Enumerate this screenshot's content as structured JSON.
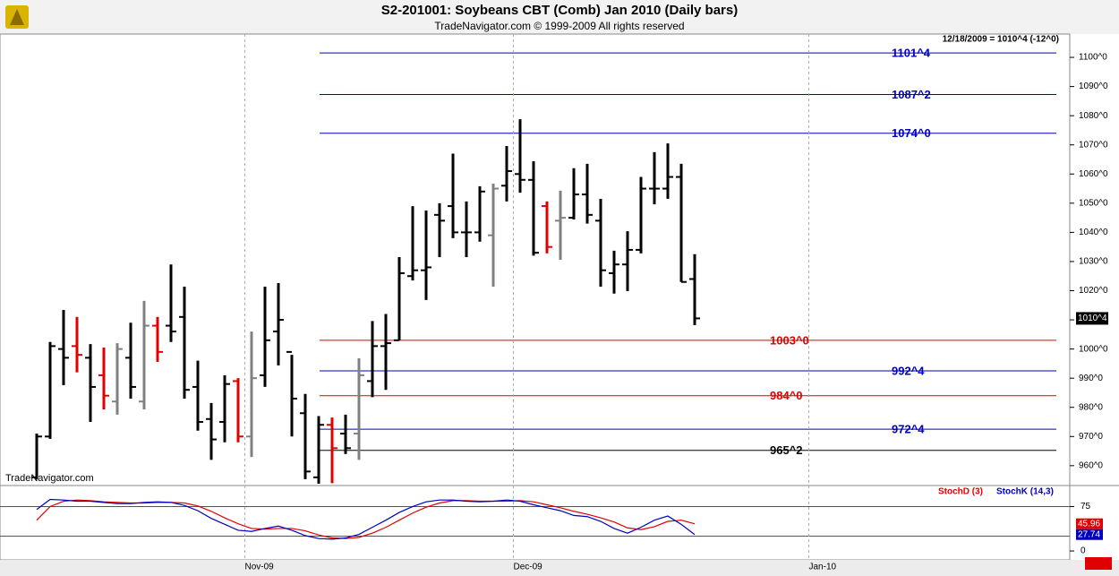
{
  "title": "S2-201001:  Soybeans CBT (Comb) Jan 2010  (Daily bars)",
  "subtitle": "TradeNavigator.com © 1999-2009 All rights reserved",
  "info": "12/18/2009 = 1010^4 (-12^0)",
  "watermark": "TradeNavigator.com",
  "chart_data": [
    {
      "type": "ohlc",
      "last_label": "1010^4",
      "ylim": [
        953.5,
        1108
      ],
      "yticks": [
        {
          "value": 960,
          "label": "960^0"
        },
        {
          "value": 970,
          "label": "970^0"
        },
        {
          "value": 980,
          "label": "980^0"
        },
        {
          "value": 990,
          "label": "990^0"
        },
        {
          "value": 1000,
          "label": "1000^0"
        },
        {
          "value": 1010,
          "label": "1010^0"
        },
        {
          "value": 1020,
          "label": "1020^0"
        },
        {
          "value": 1030,
          "label": "1030^0"
        },
        {
          "value": 1040,
          "label": "1040^0"
        },
        {
          "value": 1050,
          "label": "1050^0"
        },
        {
          "value": 1060,
          "label": "1060^0"
        },
        {
          "value": 1070,
          "label": "1070^0"
        },
        {
          "value": 1080,
          "label": "1080^0"
        },
        {
          "value": 1090,
          "label": "1090^0"
        },
        {
          "value": 1100,
          "label": "1100^0"
        }
      ],
      "open": [
        956,
        970,
        1000,
        1001,
        997,
        991,
        982,
        997,
        982,
        1008,
        1008,
        1011,
        987,
        976,
        975,
        989,
        970,
        991,
        1006,
        999,
        978,
        956,
        974,
        971,
        971,
        989,
        1001,
        1003,
        1025,
        1027,
        1046,
        1049,
        1040,
        1040,
        1039,
        1056,
        1060,
        1058,
        1049,
        1044,
        1045,
        1053,
        1044,
        1026,
        1029,
        1034,
        1055,
        1055,
        1059,
        1024,
        null,
        null,
        null,
        null,
        null,
        null,
        null,
        null,
        null
      ],
      "high": [
        971,
        1002.4,
        1013.4,
        1011,
        1001.7,
        1000.5,
        1002,
        1009,
        1016.5,
        1011,
        1029,
        1021.4,
        996,
        981.5,
        991,
        990,
        1006,
        1021.4,
        1022.6,
        998,
        984.6,
        977,
        976.5,
        977.5,
        996.8,
        1009.6,
        1012,
        1031.5,
        1049,
        1047.5,
        1050,
        1067,
        1050.6,
        1055.8,
        1056.7,
        1069.6,
        1078.8,
        1064.4,
        1050.6,
        1054.3,
        1062,
        1063.5,
        1051.5,
        1033.7,
        1040.4,
        1059,
        1067.5,
        1070.5,
        1063.5,
        1032.5,
        null,
        null,
        null,
        null,
        null,
        null,
        null,
        null,
        null
      ],
      "low": [
        955.4,
        969.2,
        987.6,
        992,
        975,
        979.3,
        977.5,
        983,
        979.3,
        995.6,
        1002.4,
        983,
        972,
        962,
        968,
        968,
        963,
        987,
        994.4,
        970,
        955.4,
        953.8,
        954,
        964,
        962,
        983.5,
        986,
        1003,
        1023.5,
        1016.8,
        1031.5,
        1038,
        1031.5,
        1036.8,
        1021.4,
        1050.6,
        1053.6,
        1032,
        1032.8,
        1030.6,
        1044.4,
        1043,
        1021.4,
        1019,
        1019.9,
        1032.8,
        1049.6,
        1051.5,
        1023,
        1008.2,
        null,
        null,
        null,
        null,
        null,
        null,
        null,
        null,
        null
      ],
      "close": [
        970,
        1001,
        997,
        998,
        987,
        984,
        1000,
        987,
        1008,
        999,
        1006,
        986,
        975,
        969,
        988,
        970,
        990,
        1003,
        1010,
        983,
        958,
        974,
        966,
        966,
        991,
        1001,
        1002,
        1026,
        1027,
        1028,
        1044,
        1040,
        1040,
        1054,
        1055,
        1061,
        1058,
        1033,
        1035,
        1045,
        1053,
        1046,
        1027,
        1029,
        1034,
        1055,
        1055,
        1059,
        1023,
        1010.5,
        null,
        null,
        null,
        null,
        null,
        null,
        null,
        null,
        null
      ],
      "bar_colors": [
        "#000000",
        "#000000",
        "#000000",
        "#e00000",
        "#000000",
        "#e00000",
        "#808080",
        "#000000",
        "#808080",
        "#e00000",
        "#000000",
        "#000000",
        "#000000",
        "#000000",
        "#000000",
        "#e00000",
        "#808080",
        "#000000",
        "#000000",
        "#000000",
        "#000000",
        "#000000",
        "#e00000",
        "#000000",
        "#808080",
        "#000000",
        "#000000",
        "#000000",
        "#000000",
        "#000000",
        "#000000",
        "#000000",
        "#000000",
        "#000000",
        "#808080",
        "#000000",
        "#000000",
        "#000000",
        "#e00000",
        "#808080",
        "#000000",
        "#000000",
        "#000000",
        "#000000",
        "#000000",
        "#000000",
        "#000000",
        "#000000",
        "#000000",
        "#000000",
        null,
        null,
        null,
        null,
        null,
        null,
        null,
        null,
        null
      ],
      "levels": [
        {
          "value": 1101.5,
          "label": "1101^4",
          "color": "#0000c0"
        },
        {
          "value": 1087.25,
          "label": "1087^2",
          "color": "#0000c0"
        },
        {
          "value": 1074,
          "label": "1074^0",
          "color": "#0000c0"
        },
        {
          "value": 1003,
          "label": "1003^0",
          "color": "#e00000"
        },
        {
          "value": 992.5,
          "label": "992^4",
          "color": "#0000c0"
        },
        {
          "value": 984,
          "label": "984^0",
          "color": "#e00000"
        },
        {
          "value": 972.5,
          "label": "972^4",
          "color": "#0000c0"
        },
        {
          "value": 965.25,
          "label": "965^2",
          "color": "#000000"
        }
      ]
    },
    {
      "type": "line",
      "categories": [
        null,
        null,
        null,
        null,
        null,
        null,
        null,
        null,
        null,
        null,
        null,
        null,
        null,
        null,
        null,
        null,
        "Nov-09",
        null,
        null,
        null,
        null,
        null,
        null,
        null,
        null,
        null,
        null,
        null,
        null,
        null,
        null,
        null,
        null,
        null,
        null,
        null,
        "Dec-09",
        null,
        null,
        null,
        null,
        null,
        null,
        null,
        null,
        null,
        null,
        null,
        null,
        null,
        null,
        null,
        null,
        null,
        null,
        null,
        null,
        null,
        "Jan-10"
      ],
      "ylim": [
        -12,
        109
      ],
      "yticks": [
        0,
        75
      ],
      "levels": [
        75,
        25
      ],
      "series": [
        {
          "name": "StochD (3)",
          "color": "#e00000",
          "values": [
            52,
            75,
            84,
            86,
            85,
            83,
            82,
            81,
            81,
            82,
            82,
            81,
            76,
            67,
            56,
            46,
            38,
            37,
            38,
            38,
            34,
            27,
            22,
            21,
            23,
            30,
            40,
            52,
            64,
            74,
            81,
            85,
            85,
            84,
            84,
            84,
            85,
            83,
            78,
            73,
            67,
            62,
            56,
            49,
            39,
            36,
            41,
            50,
            52,
            45.96,
            null,
            null,
            null,
            null,
            null,
            null,
            null,
            null,
            null
          ]
        },
        {
          "name": "StochK (14,3)",
          "color": "#0000c0",
          "values": [
            70,
            87,
            86,
            84,
            84,
            82,
            80,
            80,
            82,
            83,
            82,
            77,
            68,
            55,
            45,
            35,
            33,
            38,
            42,
            35,
            26,
            21,
            20,
            22,
            28,
            40,
            52,
            65,
            75,
            83,
            86,
            86,
            84,
            83,
            84,
            86,
            84,
            78,
            73,
            68,
            60,
            58,
            50,
            38,
            30,
            40,
            52,
            59,
            45,
            27.74,
            null,
            null,
            null,
            null,
            null,
            null,
            null,
            null,
            null
          ]
        }
      ]
    }
  ]
}
